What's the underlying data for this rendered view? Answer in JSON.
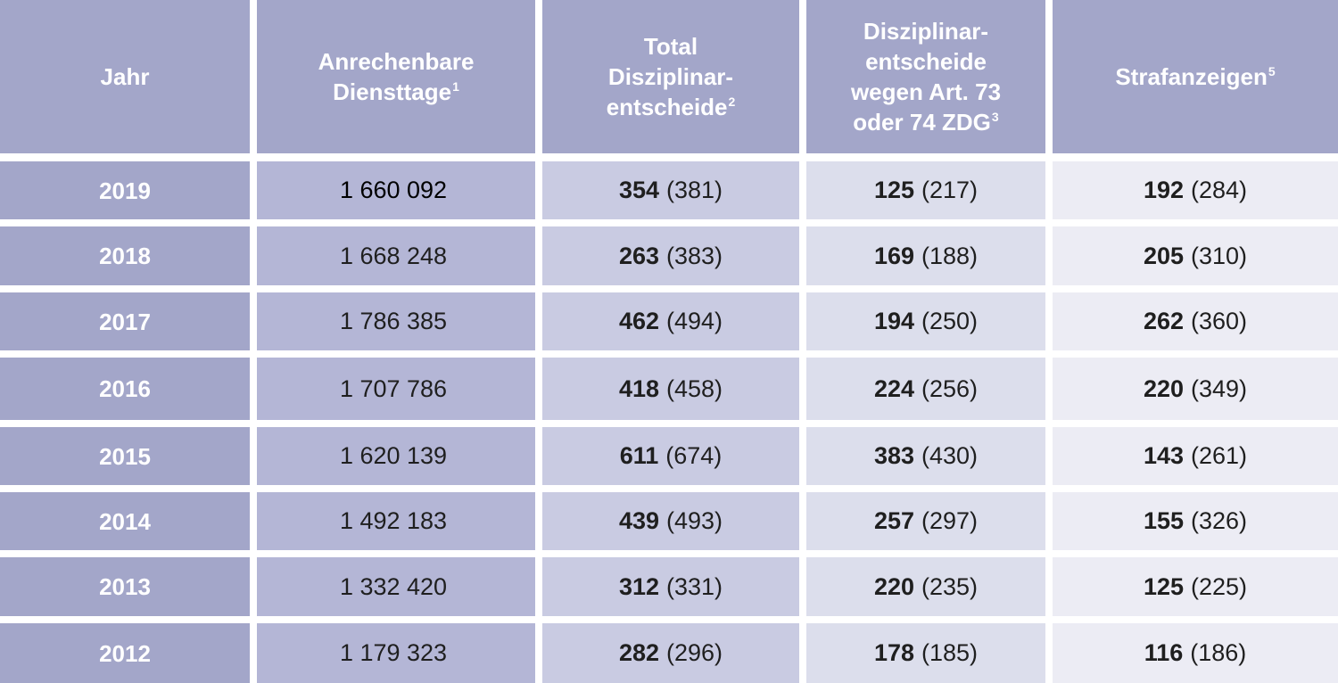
{
  "table": {
    "headers": {
      "jahr": [
        "Jahr"
      ],
      "diensttage": [
        "Anrechenbare",
        "Diensttage"
      ],
      "diensttage_sup": "1",
      "total": [
        "Total",
        "Disziplinar-",
        "entscheide"
      ],
      "total_sup": "2",
      "art": [
        "Disziplinar-",
        "entscheide",
        "wegen Art. 73",
        "oder 74 ZDG"
      ],
      "art_sup": "3",
      "straf": [
        "Strafanzeigen"
      ],
      "straf_sup": "5"
    },
    "rows": [
      {
        "year": "2019",
        "diensttage": "1 660 092",
        "total": "354",
        "total_prev": "(381)",
        "art": "125",
        "art_prev": "(217)",
        "straf": "192",
        "straf_prev": "(284)"
      },
      {
        "year": "2018",
        "diensttage": "1 668 248",
        "total": "263",
        "total_prev": "(383)",
        "art": "169",
        "art_prev": "(188)",
        "straf": "205",
        "straf_prev": "(310)"
      },
      {
        "year": "2017",
        "diensttage": "1 786 385",
        "total": "462",
        "total_prev": "(494)",
        "art": "194",
        "art_prev": "(250)",
        "straf": "262",
        "straf_prev": "(360)"
      },
      {
        "year": "2016",
        "diensttage": "1 707 786",
        "total": "418",
        "total_prev": "(458)",
        "art": "224",
        "art_prev": "(256)",
        "straf": "220",
        "straf_prev": "(349)"
      },
      {
        "year": "2015",
        "diensttage": "1 620 139",
        "total": "611",
        "total_prev": "(674)",
        "art": "383",
        "art_prev": "(430)",
        "straf": "143",
        "straf_prev": "(261)"
      },
      {
        "year": "2014",
        "diensttage": "1 492 183",
        "total": "439",
        "total_prev": "(493)",
        "art": "257",
        "art_prev": "(297)",
        "straf": "155",
        "straf_prev": "(326)"
      },
      {
        "year": "2013",
        "diensttage": "1 332 420",
        "total": "312",
        "total_prev": "(331)",
        "art": "220",
        "art_prev": "(235)",
        "straf": "125",
        "straf_prev": "(225)"
      },
      {
        "year": "2012",
        "diensttage": "1 179 323",
        "total": "282",
        "total_prev": "(296)",
        "art": "178",
        "art_prev": "(185)",
        "straf": "116",
        "straf_prev": "(186)"
      }
    ]
  },
  "colors": {
    "header_bg": "#a3a6c9",
    "year_col_bg": "#a3a6c9",
    "diensttage_col_bg": "#b4b6d6",
    "total_col_bg": "#c9cbe2",
    "art_col_bg": "#dcdeec",
    "straf_col_bg": "#ececf4"
  }
}
